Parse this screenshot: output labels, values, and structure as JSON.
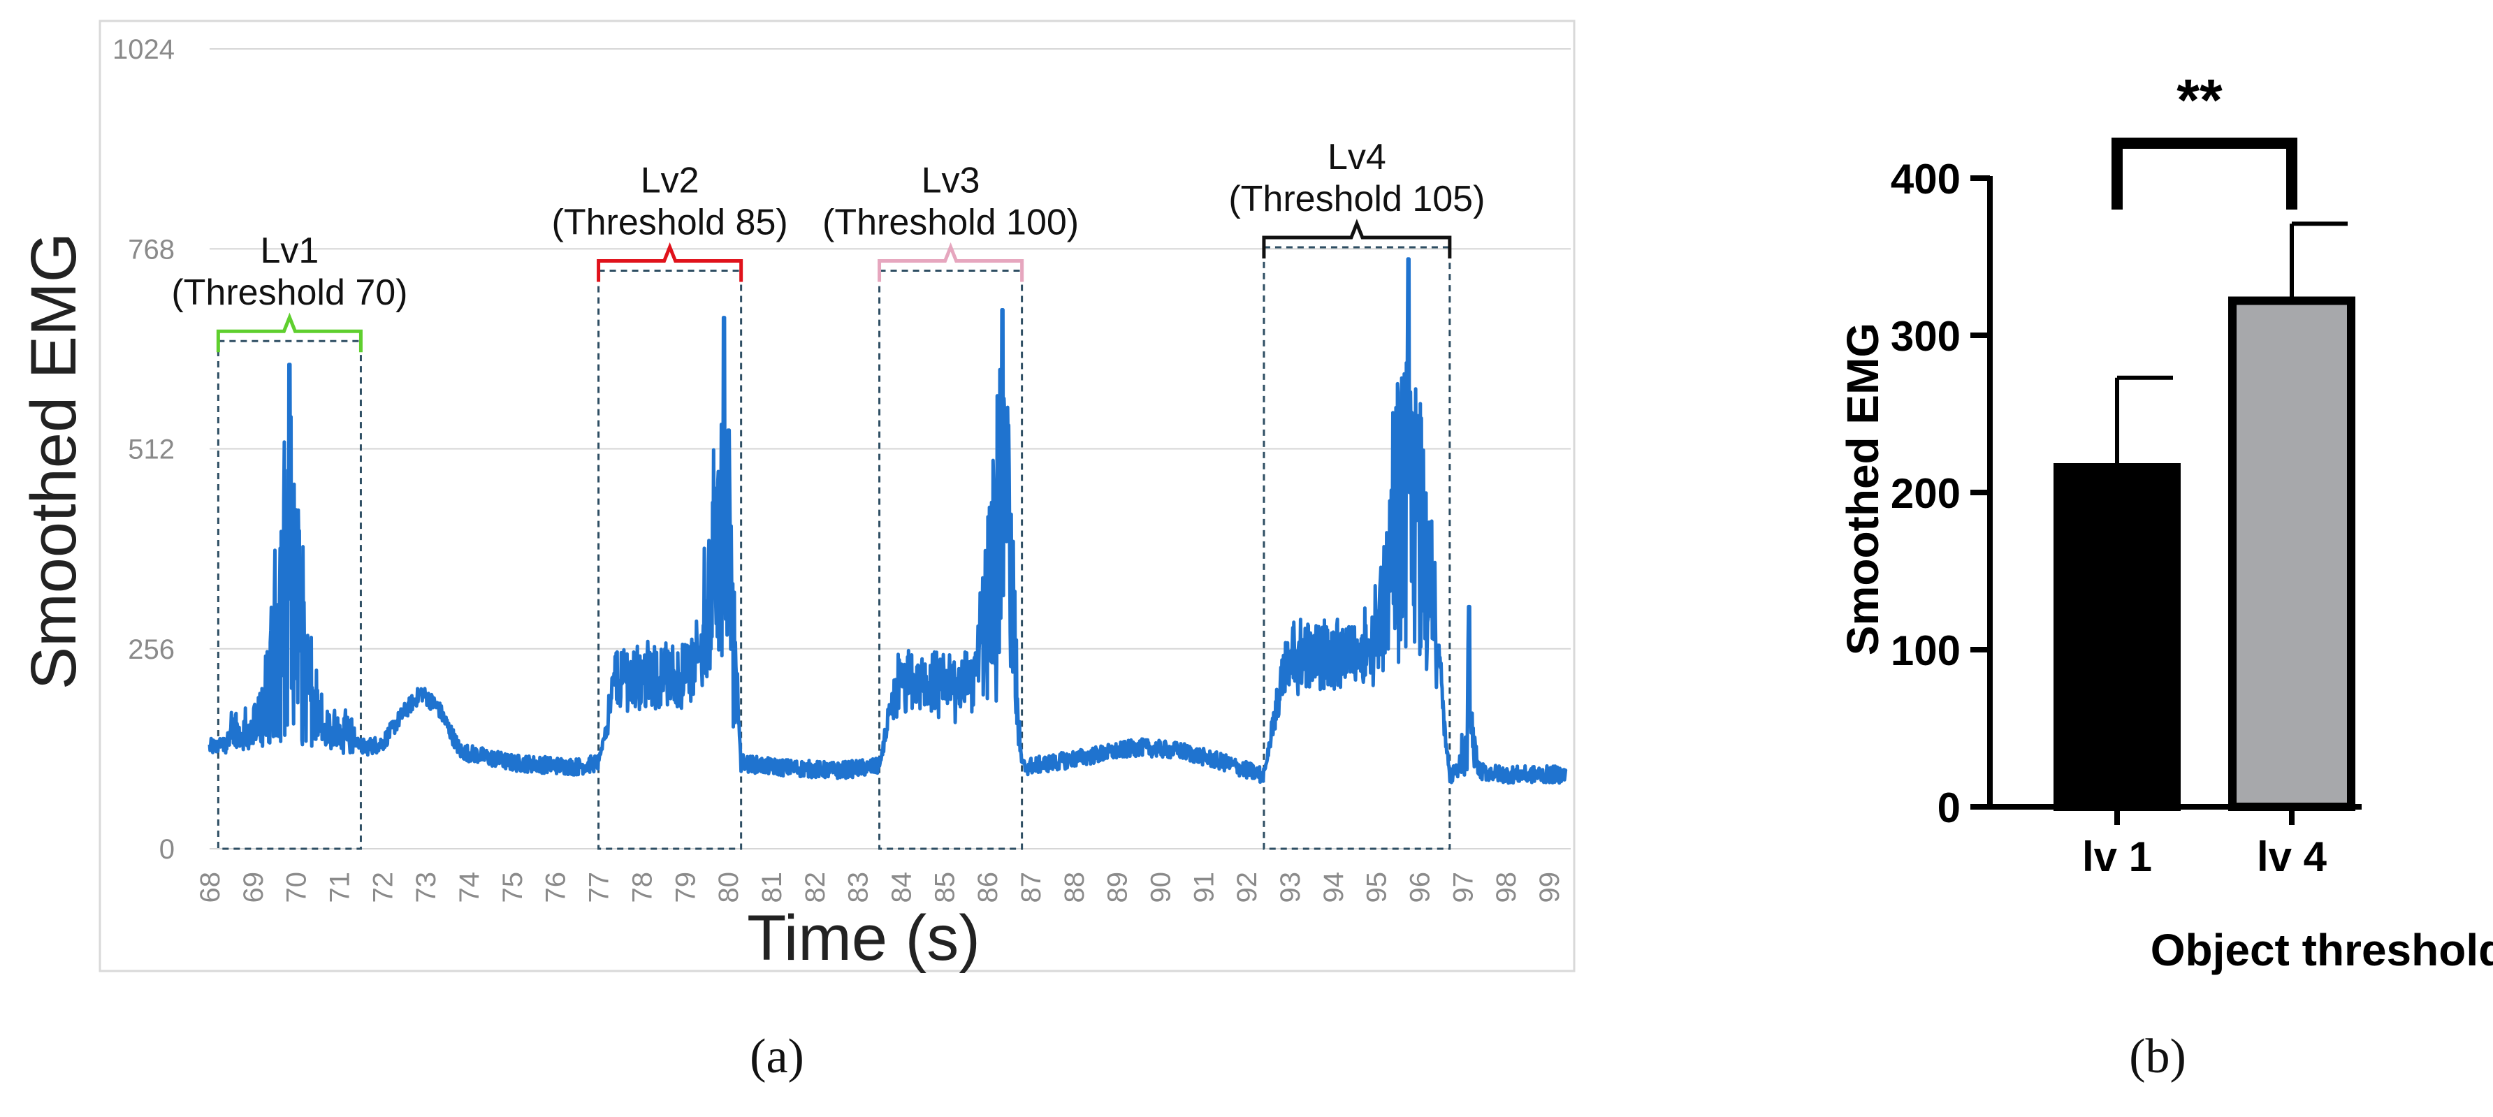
{
  "chart_data": [
    {
      "type": "line",
      "panel_label": "(a)",
      "xlabel": "Time (s)",
      "ylabel": "Smoothed EMG",
      "xlim": [
        68,
        99.5
      ],
      "ylim": [
        0,
        1024
      ],
      "yticks": [
        0,
        256,
        512,
        768,
        1024
      ],
      "xticks": [
        68,
        69,
        70,
        71,
        72,
        73,
        74,
        75,
        76,
        77,
        78,
        79,
        80,
        81,
        82,
        83,
        84,
        85,
        86,
        87,
        88,
        89,
        90,
        91,
        92,
        93,
        94,
        95,
        96,
        97,
        98,
        99
      ],
      "grid": true,
      "series_color": "#1f73cf",
      "regions": [
        {
          "level": "Lv1",
          "threshold": "(Threshold 70)",
          "x_start": 68.2,
          "x_end": 71.5,
          "top": 650,
          "color": "#5fcf2e"
        },
        {
          "level": "Lv2",
          "threshold": "(Threshold 85)",
          "x_start": 77.0,
          "x_end": 80.3,
          "top": 740,
          "color": "#e0121b"
        },
        {
          "level": "Lv3",
          "threshold": "(Threshold 100)",
          "x_start": 83.5,
          "x_end": 86.8,
          "top": 740,
          "color": "#e6a6be"
        },
        {
          "level": "Lv4",
          "threshold": "(Threshold 105)",
          "x_start": 92.4,
          "x_end": 96.7,
          "top": 770,
          "color": "#111111"
        }
      ],
      "series_profile": {
        "baseline_points": [
          [
            68,
            130
          ],
          [
            69.5,
            140
          ],
          [
            71.6,
            130
          ],
          [
            72.0,
            135
          ],
          [
            72.5,
            175
          ],
          [
            72.9,
            200
          ],
          [
            73.3,
            180
          ],
          [
            73.8,
            125
          ],
          [
            75,
            110
          ],
          [
            76.5,
            105
          ],
          [
            77.0,
            110
          ],
          [
            80.3,
            110
          ],
          [
            81,
            105
          ],
          [
            82.5,
            100
          ],
          [
            83.4,
            105
          ],
          [
            86.9,
            105
          ],
          [
            87.5,
            110
          ],
          [
            88.5,
            120
          ],
          [
            89.5,
            130
          ],
          [
            90.5,
            125
          ],
          [
            91.5,
            110
          ],
          [
            92.3,
            95
          ],
          [
            96.7,
            95
          ],
          [
            97.2,
            100
          ],
          [
            98,
            95
          ],
          [
            99.5,
            95
          ]
        ],
        "bursts": [
          {
            "x_start": 68.2,
            "x_end": 71.5,
            "peak_x": 69.85,
            "peak": 620,
            "floor": 150
          },
          {
            "x_start": 77.0,
            "x_end": 80.3,
            "peak_x": 79.9,
            "peak": 680,
            "floor": 230
          },
          {
            "x_start": 83.5,
            "x_end": 86.8,
            "peak_x": 86.35,
            "peak": 690,
            "floor": 220
          },
          {
            "x_start": 92.4,
            "x_end": 96.7,
            "peak_x": 95.75,
            "peak": 755,
            "floor": 260
          },
          {
            "x_start": 96.9,
            "x_end": 97.4,
            "peak_x": 97.15,
            "peak": 310,
            "floor": 110
          }
        ]
      }
    },
    {
      "type": "bar",
      "panel_label": "(b)",
      "title": "",
      "categories": [
        "lv 1",
        "lv 4"
      ],
      "values": [
        216,
        322
      ],
      "errors": [
        57,
        49
      ],
      "bar_colors": [
        "#000000",
        "#a7a8ab"
      ],
      "xlabel": "Object threshold level",
      "ylabel": "Smoothed EMG",
      "ylim": [
        0,
        400
      ],
      "yticks": [
        0,
        100,
        200,
        300,
        400
      ],
      "annotation": "**"
    }
  ]
}
